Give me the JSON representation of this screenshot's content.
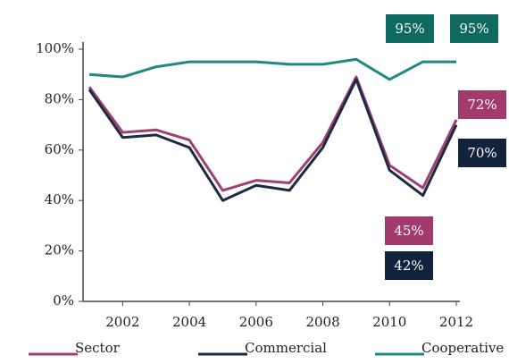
{
  "chart_data": {
    "type": "line",
    "x": [
      2001,
      2002,
      2003,
      2004,
      2005,
      2006,
      2007,
      2008,
      2009,
      2010,
      2011,
      2012
    ],
    "series": [
      {
        "name": "Sector",
        "color": "#a0406e",
        "values": [
          85,
          67,
          68,
          64,
          44,
          48,
          47,
          63,
          89,
          54,
          45,
          72
        ]
      },
      {
        "name": "Commercial",
        "color": "#1c2a44",
        "values": [
          84,
          65,
          66,
          61,
          40,
          46,
          44,
          61,
          88,
          52,
          42,
          70
        ]
      },
      {
        "name": "Cooperative",
        "color": "#1f8a80",
        "values": [
          90,
          89,
          93,
          95,
          95,
          95,
          94,
          94,
          96,
          88,
          95,
          95
        ]
      }
    ],
    "annotations": [
      {
        "text": "95%",
        "color": "#0e6a60"
      },
      {
        "text": "95%",
        "color": "#0e6a60"
      },
      {
        "text": "72%",
        "color": "#a33a6d"
      },
      {
        "text": "70%",
        "color": "#14233d"
      },
      {
        "text": "45%",
        "color": "#a33a6d"
      },
      {
        "text": "42%",
        "color": "#14233d"
      }
    ],
    "xlim": [
      2001,
      2012
    ],
    "xticks": [
      2002,
      2004,
      2006,
      2008,
      2010,
      2012
    ],
    "ylim": [
      0,
      100
    ],
    "yticks": [
      {
        "value": 0,
        "label": "0%"
      },
      {
        "value": 20,
        "label": "20%"
      },
      {
        "value": 40,
        "label": "40%"
      },
      {
        "value": 60,
        "label": "60%"
      },
      {
        "value": 80,
        "label": "80%"
      },
      {
        "value": 100,
        "label": "100%"
      }
    ]
  }
}
